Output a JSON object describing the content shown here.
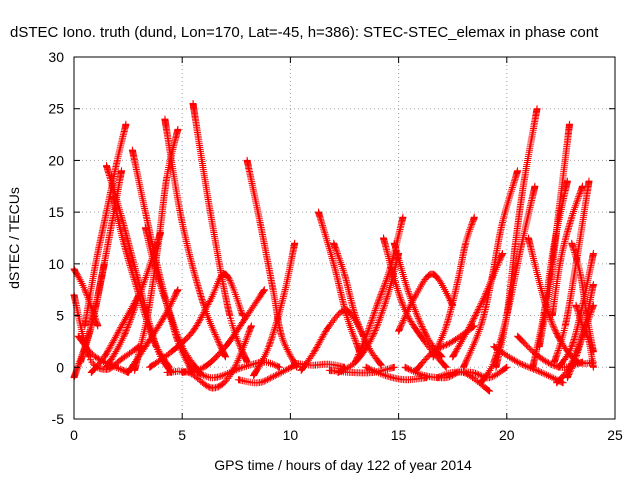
{
  "chart_data": {
    "type": "scatter",
    "title": "dSTEC Iono. truth (dund, Lon=170, Lat=-45, h=386): STEC-STEC_elemax in phase cont",
    "xlabel": "GPS time / hours of day 122 of year 2014",
    "ylabel": "dSTEC  / TECUs",
    "xlim": [
      0,
      25
    ],
    "ylim": [
      -5,
      30
    ],
    "x_ticks": [
      0,
      5,
      10,
      15,
      20,
      25
    ],
    "y_ticks": [
      -5,
      0,
      5,
      10,
      15,
      20,
      25,
      30
    ],
    "x_tick_labels": [
      "0",
      "5",
      "10",
      "15",
      "20",
      "25"
    ],
    "y_tick_labels": [
      "-5",
      "0",
      "5",
      "10",
      "15",
      "20",
      "25",
      "30"
    ],
    "grid": true,
    "marker": "+",
    "color": "#ff0000",
    "series": [
      {
        "x": [
          0.0,
          0.5,
          1.1
        ],
        "y": [
          9.5,
          7.5,
          4.0
        ]
      },
      {
        "x": [
          0.0,
          0.8,
          1.4
        ],
        "y": [
          -1.0,
          4.0,
          10.0
        ]
      },
      {
        "x": [
          0.0,
          0.7,
          1.5,
          2.2,
          3.0
        ],
        "y": [
          7.0,
          1.0,
          -0.2,
          0.8,
          2.0
        ]
      },
      {
        "x": [
          0.2,
          1.0,
          2.5
        ],
        "y": [
          3.0,
          1.0,
          -0.5
        ]
      },
      {
        "x": [
          0.3,
          0.8,
          1.3,
          1.8,
          2.2
        ],
        "y": [
          0.5,
          4.0,
          9.0,
          14.5,
          19.0
        ]
      },
      {
        "x": [
          0.5,
          1.0,
          1.5,
          2.0,
          2.4
        ],
        "y": [
          4.0,
          10.0,
          15.0,
          20.0,
          23.5
        ]
      },
      {
        "x": [
          0.8,
          1.4,
          2.2,
          3.0
        ],
        "y": [
          -0.5,
          1.0,
          4.0,
          7.0
        ]
      },
      {
        "x": [
          1.5,
          2.2,
          2.9,
          3.8,
          4.5
        ],
        "y": [
          19.5,
          14.5,
          9.0,
          2.0,
          -0.5
        ]
      },
      {
        "x": [
          1.8,
          2.3,
          3.0,
          3.7,
          4.4
        ],
        "y": [
          16.5,
          12.0,
          7.0,
          2.5,
          0.0
        ]
      },
      {
        "x": [
          1.5,
          2.3,
          3.2,
          4.0
        ],
        "y": [
          0.0,
          3.0,
          8.0,
          13.0
        ]
      },
      {
        "x": [
          2.7,
          3.3,
          4.0,
          4.8,
          5.5
        ],
        "y": [
          21.0,
          15.0,
          8.5,
          2.5,
          -0.5
        ]
      },
      {
        "x": [
          2.8,
          3.4,
          3.9,
          4.3,
          4.8
        ],
        "y": [
          -0.3,
          5.0,
          12.0,
          18.5,
          23.0
        ]
      },
      {
        "x": [
          3.3,
          3.7,
          4.3,
          5.0,
          5.8
        ],
        "y": [
          13.5,
          10.0,
          6.0,
          2.0,
          -0.5
        ]
      },
      {
        "x": [
          4.2,
          5.0,
          6.0,
          7.0
        ],
        "y": [
          24.0,
          14.0,
          6.0,
          1.0
        ]
      },
      {
        "x": [
          2.5,
          3.3,
          4.2,
          4.8
        ],
        "y": [
          -0.5,
          2.0,
          5.0,
          7.5
        ]
      },
      {
        "x": [
          5.5,
          6.3,
          7.2,
          8.0
        ],
        "y": [
          25.5,
          15.0,
          5.0,
          0.5
        ]
      },
      {
        "x": [
          3.5,
          4.5,
          5.5,
          6.3,
          7.0,
          7.8
        ],
        "y": [
          0.0,
          1.5,
          3.5,
          6.5,
          9.0,
          5.0
        ]
      },
      {
        "x": [
          4.3,
          5.3,
          6.4,
          7.3,
          8.2
        ],
        "y": [
          -0.5,
          -0.5,
          -2.0,
          -0.5,
          4.0
        ]
      },
      {
        "x": [
          5.0,
          6.0,
          7.0,
          8.0,
          8.8
        ],
        "y": [
          -0.5,
          0.0,
          2.0,
          5.0,
          7.5
        ]
      },
      {
        "x": [
          5.7,
          6.5,
          7.8,
          8.8,
          9.5
        ],
        "y": [
          -0.5,
          -1.0,
          0.0,
          0.5,
          0.0
        ]
      },
      {
        "x": [
          8.0,
          8.6,
          9.2,
          9.6,
          10.3
        ],
        "y": [
          20.0,
          14.0,
          7.5,
          3.0,
          0.0
        ]
      },
      {
        "x": [
          7.6,
          8.5,
          9.3,
          10.2
        ],
        "y": [
          -1.2,
          -1.5,
          -0.8,
          0.2
        ]
      },
      {
        "x": [
          8.3,
          9.0,
          9.7,
          10.2
        ],
        "y": [
          -0.8,
          2.0,
          7.0,
          12.0
        ]
      },
      {
        "x": [
          10.2,
          11.0,
          11.8,
          12.5
        ],
        "y": [
          0.4,
          0.2,
          0.3,
          0.0
        ]
      },
      {
        "x": [
          10.5,
          11.1,
          11.8,
          12.6,
          13.4
        ],
        "y": [
          -0.3,
          1.5,
          4.0,
          5.5,
          3.0
        ]
      },
      {
        "x": [
          11.3,
          12.0,
          12.6,
          13.2
        ],
        "y": [
          15.0,
          10.0,
          5.0,
          1.5
        ]
      },
      {
        "x": [
          11.8,
          12.8,
          13.8,
          14.8
        ],
        "y": [
          -0.3,
          -0.5,
          -0.5,
          0.0
        ]
      },
      {
        "x": [
          12.0,
          12.5,
          13.0,
          13.6,
          14.2
        ],
        "y": [
          12.0,
          9.0,
          5.0,
          2.0,
          0.2
        ]
      },
      {
        "x": [
          12.2,
          13.0,
          13.8,
          14.5,
          15.0
        ],
        "y": [
          -0.5,
          0.5,
          3.0,
          7.0,
          11.0
        ]
      },
      {
        "x": [
          13.0,
          13.5,
          14.0,
          14.6,
          15.2
        ],
        "y": [
          0.5,
          3.0,
          6.0,
          9.5,
          14.5
        ]
      },
      {
        "x": [
          14.3,
          15.2,
          16.2,
          17.2
        ],
        "y": [
          12.5,
          6.0,
          2.5,
          0.0
        ]
      },
      {
        "x": [
          13.5,
          14.4,
          15.3,
          16.3
        ],
        "y": [
          0.0,
          -0.8,
          -1.2,
          -1.0
        ]
      },
      {
        "x": [
          14.8,
          15.5,
          16.3,
          17.0
        ],
        "y": [
          12.0,
          7.0,
          3.0,
          1.0
        ]
      },
      {
        "x": [
          15.0,
          15.8,
          16.6,
          17.5
        ],
        "y": [
          3.5,
          7.0,
          9.0,
          6.0
        ]
      },
      {
        "x": [
          15.3,
          16.2,
          17.2,
          18.0,
          19.2
        ],
        "y": [
          0.0,
          -0.8,
          -1.0,
          -0.5,
          -2.3
        ]
      },
      {
        "x": [
          15.8,
          16.6,
          17.5,
          18.5
        ],
        "y": [
          -0.3,
          1.5,
          2.5,
          4.0
        ]
      },
      {
        "x": [
          16.6,
          17.2,
          17.7,
          18.1,
          18.5
        ],
        "y": [
          1.0,
          4.0,
          8.0,
          12.0,
          14.5
        ]
      },
      {
        "x": [
          16.8,
          17.5,
          18.4,
          19.2,
          20.0
        ],
        "y": [
          -1.0,
          -0.5,
          -0.5,
          -1.0,
          0.0
        ]
      },
      {
        "x": [
          17.5,
          18.3,
          19.0,
          19.8
        ],
        "y": [
          1.0,
          4.0,
          7.0,
          11.0
        ]
      },
      {
        "x": [
          18.0,
          18.8,
          19.3,
          19.8,
          20.5
        ],
        "y": [
          0.0,
          4.0,
          8.5,
          14.0,
          19.0
        ]
      },
      {
        "x": [
          18.8,
          19.4,
          20.0,
          20.7,
          21.3
        ],
        "y": [
          -1.5,
          0.5,
          5.0,
          12.0,
          17.5
        ]
      },
      {
        "x": [
          19.5,
          20.0,
          20.4,
          20.8,
          21.4
        ],
        "y": [
          0.0,
          5.0,
          12.0,
          18.0,
          25.0
        ]
      },
      {
        "x": [
          19.4,
          20.5,
          21.6,
          22.6
        ],
        "y": [
          2.0,
          0.5,
          -0.5,
          -1.5
        ]
      },
      {
        "x": [
          20.5,
          21.5,
          22.5,
          23.5
        ],
        "y": [
          3.0,
          1.0,
          0.0,
          0.5
        ]
      },
      {
        "x": [
          21.0,
          21.8,
          22.5,
          23.3,
          24.0
        ],
        "y": [
          12.5,
          6.0,
          2.5,
          0.5,
          0.5
        ]
      },
      {
        "x": [
          21.2,
          21.7,
          22.2,
          22.8
        ],
        "y": [
          0.0,
          5.0,
          12.0,
          18.0
        ]
      },
      {
        "x": [
          21.5,
          22.0,
          22.4,
          22.9
        ],
        "y": [
          2.0,
          8.0,
          15.0,
          23.5
        ]
      },
      {
        "x": [
          22.1,
          22.5,
          23.0,
          23.5
        ],
        "y": [
          5.0,
          10.5,
          14.5,
          17.5
        ]
      },
      {
        "x": [
          22.4,
          23.0,
          23.5,
          24.0
        ],
        "y": [
          0.0,
          2.0,
          6.0,
          11.0
        ]
      },
      {
        "x": [
          22.3,
          22.9,
          23.5,
          24.0
        ],
        "y": [
          -1.5,
          0.0,
          3.0,
          6.0
        ]
      },
      {
        "x": [
          22.8,
          23.2,
          23.6,
          24.0
        ],
        "y": [
          -1.0,
          1.0,
          4.0,
          8.0
        ]
      },
      {
        "x": [
          23.0,
          23.4,
          23.7,
          24.0
        ],
        "y": [
          12.0,
          9.0,
          5.0,
          1.5
        ]
      },
      {
        "x": [
          23.2,
          23.5,
          23.8,
          24.0
        ],
        "y": [
          6.0,
          4.0,
          2.5,
          0.0
        ]
      },
      {
        "x": [
          22.2,
          22.7,
          23.2,
          23.8
        ],
        "y": [
          0.5,
          4.0,
          10.0,
          18.0
        ]
      }
    ]
  }
}
